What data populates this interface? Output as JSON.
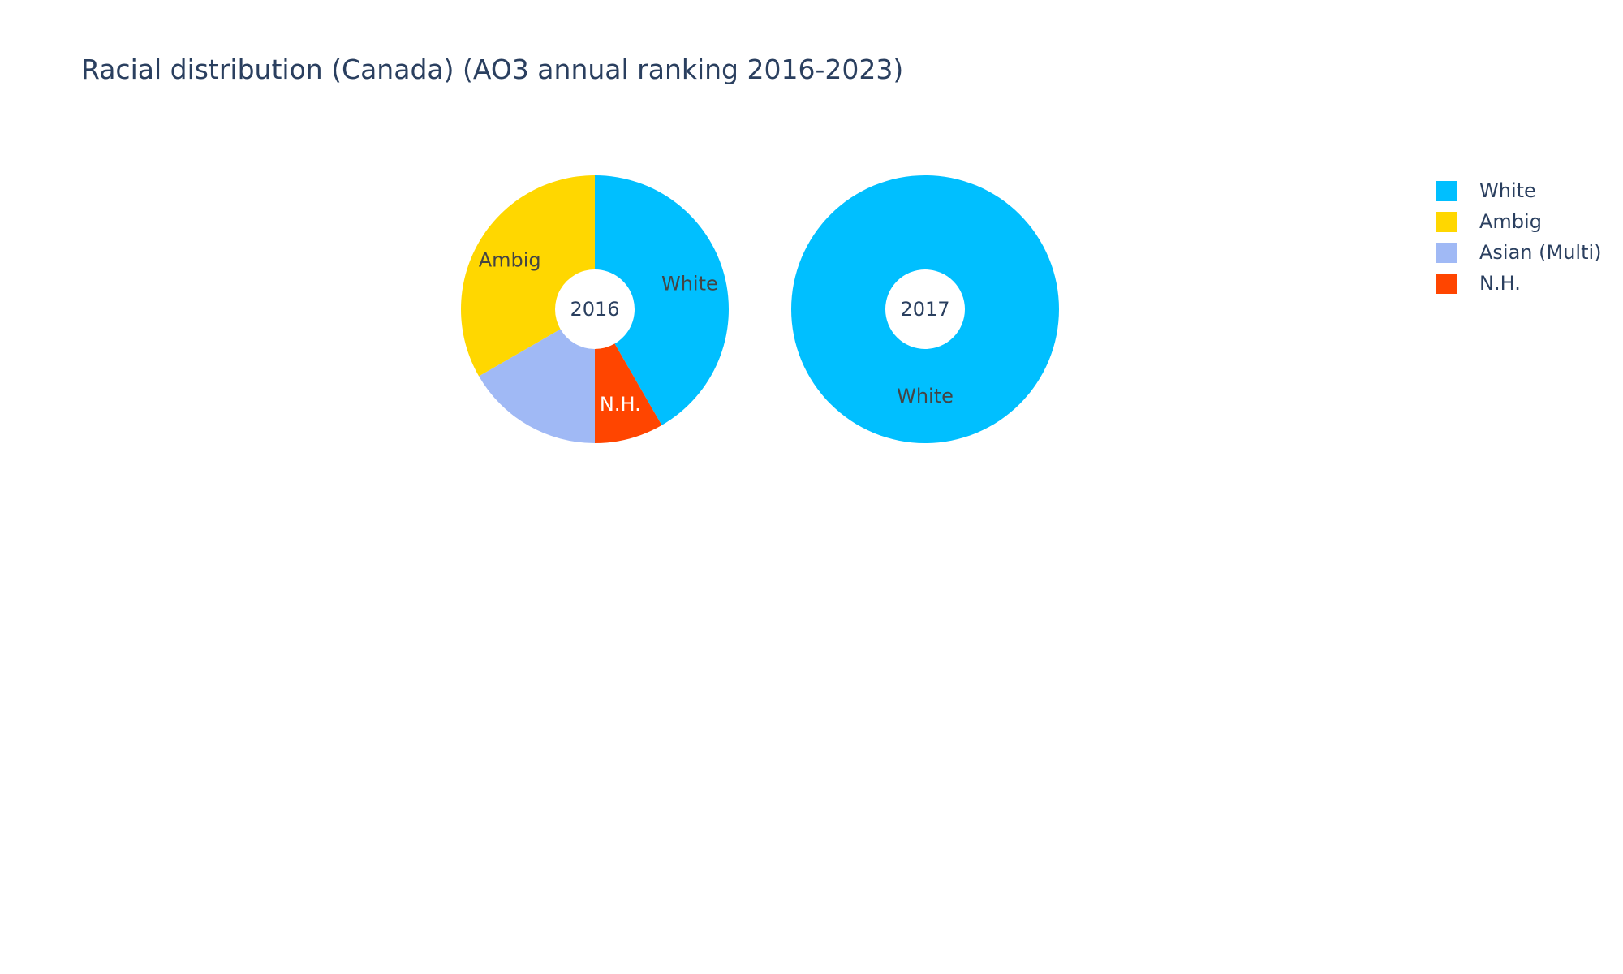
{
  "chart_data": {
    "type": "pie",
    "title": "Racial distribution (Canada) (AO3 annual ranking 2016-2023)",
    "hole": true,
    "legend_position": "top-right",
    "colors": {
      "White": "#00bfff",
      "Ambig": "#ffd700",
      "Asian (Multi)": "#a0b9f5",
      "N.H.": "#ff4500"
    },
    "legend": [
      "White",
      "Ambig",
      "Asian (Multi)",
      "N.H."
    ],
    "pies": [
      {
        "center_label": "2016",
        "slices": [
          {
            "label": "White",
            "value": 3,
            "text_color": "#444444"
          },
          {
            "label": "N.H.",
            "value": 0.6,
            "text_color": "#ffffff"
          },
          {
            "label": "Asian (Multi)",
            "value": 1.2,
            "text_color": "#444444",
            "show_label": false
          },
          {
            "label": "Ambig",
            "value": 2.4,
            "text_color": "#444444"
          }
        ]
      },
      {
        "center_label": "2017",
        "slices": [
          {
            "label": "White",
            "value": 1,
            "text_color": "#444444"
          }
        ]
      }
    ]
  }
}
